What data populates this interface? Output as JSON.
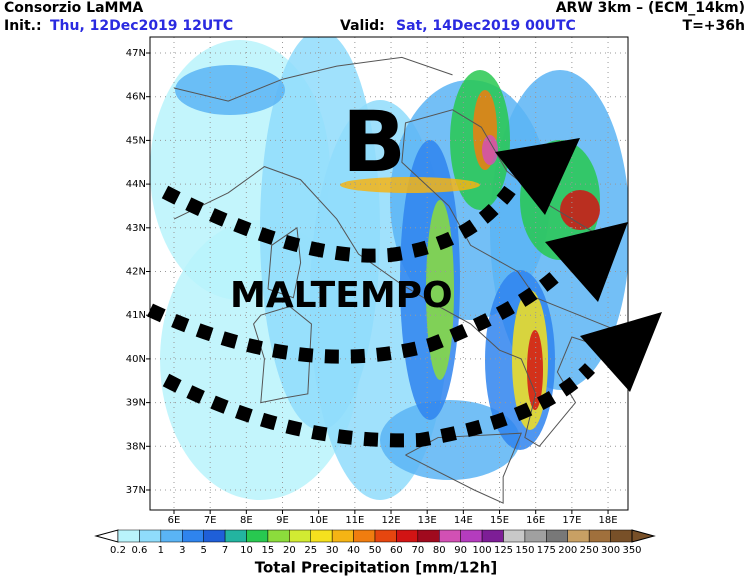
{
  "header": {
    "title": "Consorzio LaMMA",
    "model": "ARW 3km – (ECM_14km)",
    "init_label": "Init.:",
    "init_time": "Thu, 12Dec2019 12UTC",
    "valid_label": "Valid:",
    "valid_time": "Sat, 14Dec2019 00UTC",
    "lead_time": "T=+36h"
  },
  "map": {
    "lat_labels": [
      "47N",
      "46N",
      "45N",
      "44N",
      "43N",
      "42N",
      "41N",
      "40N",
      "39N",
      "38N",
      "37N"
    ],
    "lon_labels": [
      "6E",
      "7E",
      "8E",
      "9E",
      "10E",
      "11E",
      "12E",
      "13E",
      "14E",
      "15E",
      "16E",
      "17E",
      "18E"
    ],
    "annotations": {
      "low": "B",
      "warning": "MALTEMPO"
    }
  },
  "colorbar": {
    "title": "Total Precipitation [mm/12h]",
    "labels": [
      "0.2",
      "0.6",
      "1",
      "3",
      "5",
      "7",
      "10",
      "15",
      "20",
      "25",
      "30",
      "40",
      "50",
      "60",
      "70",
      "80",
      "90",
      "100",
      "125",
      "150",
      "175",
      "200",
      "250",
      "300",
      "350"
    ],
    "colors": [
      "#b9f3fb",
      "#8fdcfb",
      "#5ab4f5",
      "#2f84ee",
      "#1f5fd8",
      "#23b4a0",
      "#28c850",
      "#8cdc3c",
      "#d2eb32",
      "#f5e11e",
      "#f5b414",
      "#f07d0f",
      "#e6460f",
      "#d21414",
      "#a00a1e",
      "#d250b4",
      "#b43cbe",
      "#7d1e96",
      "#c8c8c8",
      "#a0a0a0",
      "#787878",
      "#c8a064",
      "#a0703c",
      "#785028"
    ]
  }
}
